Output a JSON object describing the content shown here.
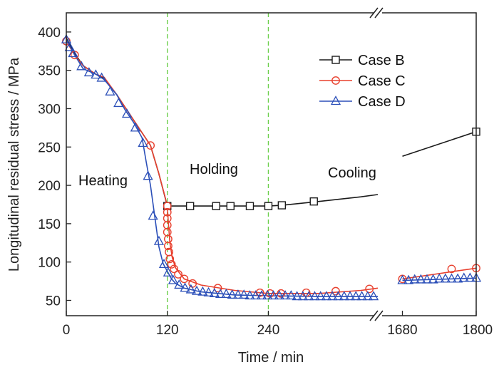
{
  "chart_data": {
    "type": "line",
    "xlabel": "Time / min",
    "ylabel": "Longitudinal residual stress / MPa",
    "ylim": [
      30,
      425
    ],
    "yticks": [
      50,
      100,
      150,
      200,
      250,
      300,
      350,
      400
    ],
    "x_axis": {
      "broken": true,
      "segments": [
        {
          "range": [
            0,
            370
          ],
          "ticks": [
            0,
            120,
            240
          ]
        },
        {
          "range": [
            1640,
            1800
          ],
          "ticks": [
            1680,
            1800
          ]
        }
      ],
      "tick_labels": [
        "0",
        "120",
        "240",
        "1680",
        "1800"
      ]
    },
    "phase_labels": [
      "Heating",
      "Holding",
      "Cooling"
    ],
    "phase_boundaries": [
      120,
      240
    ],
    "legend": {
      "position": "top-right"
    },
    "grid": false,
    "series": [
      {
        "name": "Case B",
        "color": "#1a1a1a",
        "marker": "square",
        "curve": [
          [
            0,
            392
          ],
          [
            10,
            372
          ],
          [
            20,
            356
          ],
          [
            35,
            345
          ],
          [
            45,
            340
          ],
          [
            60,
            318
          ],
          [
            80,
            285
          ],
          [
            100,
            252
          ],
          [
            110,
            215
          ],
          [
            120,
            173
          ],
          [
            150,
            173
          ],
          [
            200,
            173
          ],
          [
            240,
            173
          ],
          [
            256,
            174
          ],
          [
            300,
            179
          ],
          [
            350,
            185
          ],
          [
            370,
            188
          ],
          [
            1680,
            238
          ],
          [
            1800,
            270
          ]
        ],
        "marker_points": [
          [
            120,
            173
          ],
          [
            147,
            173
          ],
          [
            178,
            173
          ],
          [
            195,
            173
          ],
          [
            218,
            173
          ],
          [
            240,
            173
          ],
          [
            256,
            174
          ],
          [
            294,
            179
          ],
          [
            1800,
            270
          ]
        ]
      },
      {
        "name": "Case C",
        "color": "#e8402e",
        "marker": "circle",
        "curve": [
          [
            0,
            388
          ],
          [
            10,
            370
          ],
          [
            20,
            356
          ],
          [
            35,
            345
          ],
          [
            45,
            341
          ],
          [
            60,
            318
          ],
          [
            80,
            285
          ],
          [
            100,
            252
          ],
          [
            110,
            215
          ],
          [
            118,
            182
          ],
          [
            120,
            173
          ],
          [
            121,
            155
          ],
          [
            123,
            125
          ],
          [
            126,
            105
          ],
          [
            130,
            92
          ],
          [
            140,
            78
          ],
          [
            160,
            70
          ],
          [
            200,
            63
          ],
          [
            240,
            59
          ],
          [
            300,
            59
          ],
          [
            350,
            63
          ],
          [
            370,
            66
          ],
          [
            1680,
            78
          ],
          [
            1800,
            92
          ]
        ],
        "marker_points": [
          [
            0,
            388
          ],
          [
            10,
            370
          ],
          [
            100,
            252
          ],
          [
            120,
            173
          ],
          [
            120,
            165
          ],
          [
            120,
            157
          ],
          [
            120,
            148
          ],
          [
            120,
            139
          ],
          [
            121,
            130
          ],
          [
            121,
            121
          ],
          [
            122,
            113
          ],
          [
            123,
            104
          ],
          [
            125,
            97
          ],
          [
            128,
            91
          ],
          [
            133,
            84
          ],
          [
            140,
            78
          ],
          [
            150,
            72
          ],
          [
            180,
            66
          ],
          [
            230,
            60
          ],
          [
            242,
            59
          ],
          [
            255,
            59
          ],
          [
            285,
            60
          ],
          [
            320,
            62
          ],
          [
            360,
            65
          ],
          [
            1680,
            78
          ],
          [
            1760,
            91
          ],
          [
            1800,
            92
          ]
        ]
      },
      {
        "name": "Case D",
        "color": "#2b4fb8",
        "marker": "triangle",
        "curve": [
          [
            0,
            390
          ],
          [
            10,
            370
          ],
          [
            20,
            352
          ],
          [
            35,
            345
          ],
          [
            45,
            338
          ],
          [
            60,
            318
          ],
          [
            70,
            298
          ],
          [
            80,
            282
          ],
          [
            90,
            262
          ],
          [
            95,
            230
          ],
          [
            100,
            200
          ],
          [
            105,
            160
          ],
          [
            110,
            120
          ],
          [
            115,
            98
          ],
          [
            120,
            88
          ],
          [
            125,
            78
          ],
          [
            130,
            72
          ],
          [
            140,
            66
          ],
          [
            160,
            61
          ],
          [
            200,
            57
          ],
          [
            240,
            56
          ],
          [
            300,
            55
          ],
          [
            370,
            55
          ],
          [
            1680,
            76
          ],
          [
            1800,
            79
          ]
        ],
        "marker_points": [
          [
            0,
            390
          ],
          [
            4,
            380
          ],
          [
            8,
            372
          ],
          [
            18,
            355
          ],
          [
            27,
            347
          ],
          [
            35,
            344
          ],
          [
            42,
            340
          ],
          [
            52,
            322
          ],
          [
            62,
            307
          ],
          [
            72,
            293
          ],
          [
            82,
            275
          ],
          [
            91,
            255
          ],
          [
            97,
            212
          ],
          [
            103,
            160
          ],
          [
            110,
            127
          ],
          [
            116,
            97
          ],
          [
            121,
            86
          ],
          [
            127,
            76
          ],
          [
            134,
            70
          ],
          [
            141,
            66
          ],
          [
            148,
            64
          ],
          [
            155,
            62
          ],
          [
            162,
            61
          ],
          [
            169,
            60
          ],
          [
            176,
            59
          ],
          [
            183,
            58
          ],
          [
            190,
            58
          ],
          [
            197,
            57
          ],
          [
            204,
            57
          ],
          [
            211,
            57
          ],
          [
            218,
            56
          ],
          [
            225,
            56
          ],
          [
            232,
            56
          ],
          [
            239,
            56
          ],
          [
            246,
            56
          ],
          [
            253,
            56
          ],
          [
            260,
            56
          ],
          [
            267,
            56
          ],
          [
            274,
            55
          ],
          [
            281,
            55
          ],
          [
            288,
            55
          ],
          [
            295,
            55
          ],
          [
            302,
            55
          ],
          [
            309,
            55
          ],
          [
            316,
            55
          ],
          [
            323,
            55
          ],
          [
            330,
            55
          ],
          [
            337,
            55
          ],
          [
            344,
            55
          ],
          [
            351,
            55
          ],
          [
            358,
            55
          ],
          [
            365,
            55
          ],
          [
            1680,
            76
          ],
          [
            1690,
            76
          ],
          [
            1700,
            77
          ],
          [
            1710,
            77
          ],
          [
            1720,
            77
          ],
          [
            1730,
            77
          ],
          [
            1740,
            78
          ],
          [
            1750,
            78
          ],
          [
            1760,
            78
          ],
          [
            1770,
            78
          ],
          [
            1780,
            79
          ],
          [
            1790,
            79
          ],
          [
            1800,
            79
          ]
        ]
      }
    ]
  }
}
